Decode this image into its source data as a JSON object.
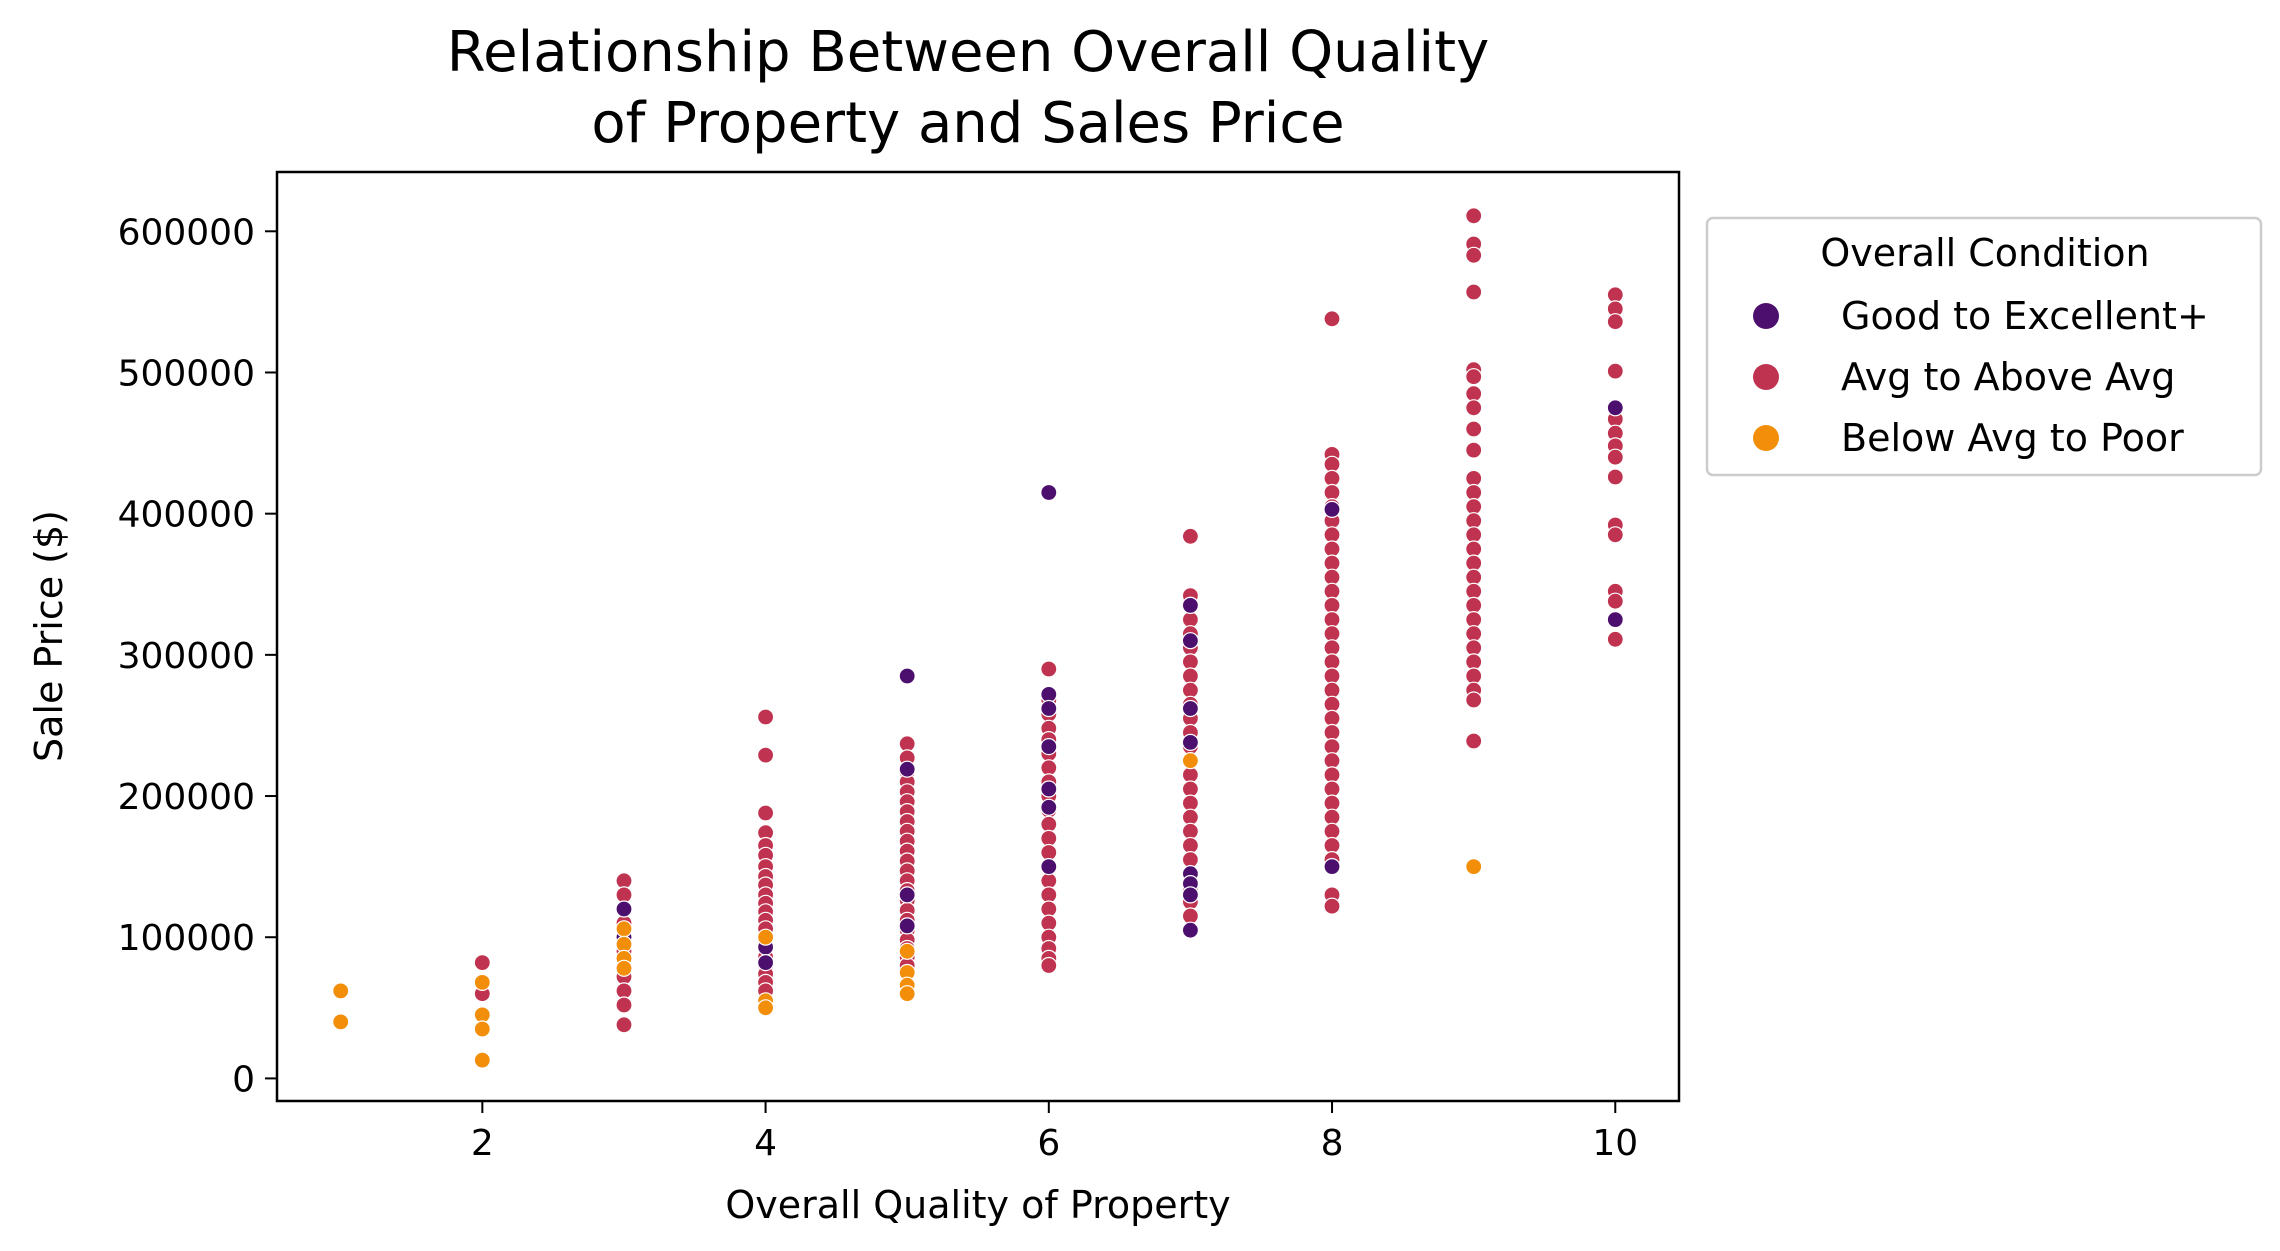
{
  "chart_data": {
    "type": "scatter",
    "title_line1": "Relationship Between Overall Quality",
    "title_line2": "of Property and Sales Price",
    "xlabel": "Overall Quality of Property",
    "ylabel": "Sale Price ($)",
    "xlim": [
      0.55,
      10.45
    ],
    "ylim": [
      -16000,
      642000
    ],
    "xticks": [
      2,
      4,
      6,
      8,
      10
    ],
    "yticks": [
      0,
      100000,
      200000,
      300000,
      400000,
      500000,
      600000
    ],
    "xtick_labels": [
      "2",
      "4",
      "6",
      "8",
      "10"
    ],
    "ytick_labels": [
      "0",
      "100000",
      "200000",
      "300000",
      "400000",
      "500000",
      "600000"
    ],
    "grid": false,
    "legend_position": "outside-right",
    "legend": {
      "title": "Overall Condition",
      "entries": [
        {
          "label": "Good to Excellent+",
          "color": "#4d0f6e"
        },
        {
          "label": "Avg to Above Avg",
          "color": "#c03350"
        },
        {
          "label": "Below Avg to Poor",
          "color": "#f28e0a"
        }
      ]
    },
    "series": [
      {
        "name": "Avg to Above Avg",
        "color": "#c03350",
        "points": [
          [
            2,
            82000
          ],
          [
            2,
            60000
          ],
          [
            3,
            140000
          ],
          [
            3,
            130000
          ],
          [
            3,
            110000
          ],
          [
            3,
            90000
          ],
          [
            3,
            72000
          ],
          [
            3,
            62000
          ],
          [
            3,
            52000
          ],
          [
            3,
            38000
          ],
          [
            4,
            256000
          ],
          [
            4,
            229000
          ],
          [
            4,
            188000
          ],
          [
            4,
            174000
          ],
          [
            4,
            165000
          ],
          [
            4,
            158000
          ],
          [
            4,
            150000
          ],
          [
            4,
            143000
          ],
          [
            4,
            137000
          ],
          [
            4,
            130000
          ],
          [
            4,
            124000
          ],
          [
            4,
            118000
          ],
          [
            4,
            112000
          ],
          [
            4,
            106000
          ],
          [
            4,
            98000
          ],
          [
            4,
            92000
          ],
          [
            4,
            86000
          ],
          [
            4,
            80000
          ],
          [
            4,
            74000
          ],
          [
            4,
            68000
          ],
          [
            4,
            62000
          ],
          [
            5,
            237000
          ],
          [
            5,
            227000
          ],
          [
            5,
            217000
          ],
          [
            5,
            210000
          ],
          [
            5,
            203000
          ],
          [
            5,
            196000
          ],
          [
            5,
            189000
          ],
          [
            5,
            182000
          ],
          [
            5,
            175000
          ],
          [
            5,
            168000
          ],
          [
            5,
            161000
          ],
          [
            5,
            154000
          ],
          [
            5,
            147000
          ],
          [
            5,
            140000
          ],
          [
            5,
            133000
          ],
          [
            5,
            126000
          ],
          [
            5,
            119000
          ],
          [
            5,
            112000
          ],
          [
            5,
            105000
          ],
          [
            5,
            98000
          ],
          [
            5,
            92000
          ],
          [
            5,
            86000
          ],
          [
            5,
            80000
          ],
          [
            6,
            290000
          ],
          [
            6,
            268000
          ],
          [
            6,
            258000
          ],
          [
            6,
            248000
          ],
          [
            6,
            240000
          ],
          [
            6,
            230000
          ],
          [
            6,
            220000
          ],
          [
            6,
            210000
          ],
          [
            6,
            200000
          ],
          [
            6,
            190000
          ],
          [
            6,
            180000
          ],
          [
            6,
            170000
          ],
          [
            6,
            160000
          ],
          [
            6,
            150000
          ],
          [
            6,
            140000
          ],
          [
            6,
            130000
          ],
          [
            6,
            120000
          ],
          [
            6,
            110000
          ],
          [
            6,
            100000
          ],
          [
            6,
            92000
          ],
          [
            6,
            85000
          ],
          [
            6,
            80000
          ],
          [
            7,
            384000
          ],
          [
            7,
            342000
          ],
          [
            7,
            335000
          ],
          [
            7,
            325000
          ],
          [
            7,
            315000
          ],
          [
            7,
            305000
          ],
          [
            7,
            295000
          ],
          [
            7,
            285000
          ],
          [
            7,
            275000
          ],
          [
            7,
            265000
          ],
          [
            7,
            255000
          ],
          [
            7,
            245000
          ],
          [
            7,
            235000
          ],
          [
            7,
            225000
          ],
          [
            7,
            215000
          ],
          [
            7,
            205000
          ],
          [
            7,
            195000
          ],
          [
            7,
            185000
          ],
          [
            7,
            175000
          ],
          [
            7,
            165000
          ],
          [
            7,
            155000
          ],
          [
            7,
            145000
          ],
          [
            7,
            135000
          ],
          [
            7,
            125000
          ],
          [
            7,
            115000
          ],
          [
            8,
            538000
          ],
          [
            8,
            442000
          ],
          [
            8,
            435000
          ],
          [
            8,
            425000
          ],
          [
            8,
            415000
          ],
          [
            8,
            405000
          ],
          [
            8,
            395000
          ],
          [
            8,
            385000
          ],
          [
            8,
            375000
          ],
          [
            8,
            365000
          ],
          [
            8,
            355000
          ],
          [
            8,
            345000
          ],
          [
            8,
            335000
          ],
          [
            8,
            325000
          ],
          [
            8,
            315000
          ],
          [
            8,
            305000
          ],
          [
            8,
            295000
          ],
          [
            8,
            285000
          ],
          [
            8,
            275000
          ],
          [
            8,
            265000
          ],
          [
            8,
            255000
          ],
          [
            8,
            245000
          ],
          [
            8,
            235000
          ],
          [
            8,
            225000
          ],
          [
            8,
            215000
          ],
          [
            8,
            205000
          ],
          [
            8,
            195000
          ],
          [
            8,
            185000
          ],
          [
            8,
            175000
          ],
          [
            8,
            165000
          ],
          [
            8,
            155000
          ],
          [
            8,
            130000
          ],
          [
            8,
            122000
          ],
          [
            9,
            611000
          ],
          [
            9,
            591000
          ],
          [
            9,
            583000
          ],
          [
            9,
            557000
          ],
          [
            9,
            502000
          ],
          [
            9,
            497000
          ],
          [
            9,
            485000
          ],
          [
            9,
            475000
          ],
          [
            9,
            460000
          ],
          [
            9,
            445000
          ],
          [
            9,
            425000
          ],
          [
            9,
            415000
          ],
          [
            9,
            405000
          ],
          [
            9,
            395000
          ],
          [
            9,
            385000
          ],
          [
            9,
            375000
          ],
          [
            9,
            365000
          ],
          [
            9,
            355000
          ],
          [
            9,
            345000
          ],
          [
            9,
            335000
          ],
          [
            9,
            325000
          ],
          [
            9,
            315000
          ],
          [
            9,
            305000
          ],
          [
            9,
            295000
          ],
          [
            9,
            285000
          ],
          [
            9,
            275000
          ],
          [
            9,
            268000
          ],
          [
            9,
            239000
          ],
          [
            10,
            555000
          ],
          [
            10,
            545000
          ],
          [
            10,
            536000
          ],
          [
            10,
            501000
          ],
          [
            10,
            467000
          ],
          [
            10,
            457000
          ],
          [
            10,
            448000
          ],
          [
            10,
            440000
          ],
          [
            10,
            426000
          ],
          [
            10,
            392000
          ],
          [
            10,
            385000
          ],
          [
            10,
            345000
          ],
          [
            10,
            338000
          ],
          [
            10,
            311000
          ]
        ]
      },
      {
        "name": "Good to Excellent+",
        "color": "#4d0f6e",
        "points": [
          [
            3,
            120000
          ],
          [
            3,
            100000
          ],
          [
            4,
            93000
          ],
          [
            4,
            82000
          ],
          [
            5,
            285000
          ],
          [
            5,
            219000
          ],
          [
            5,
            130000
          ],
          [
            5,
            108000
          ],
          [
            6,
            415000
          ],
          [
            6,
            272000
          ],
          [
            6,
            262000
          ],
          [
            6,
            235000
          ],
          [
            6,
            205000
          ],
          [
            6,
            192000
          ],
          [
            6,
            150000
          ],
          [
            7,
            335000
          ],
          [
            7,
            310000
          ],
          [
            7,
            262000
          ],
          [
            7,
            238000
          ],
          [
            7,
            145000
          ],
          [
            7,
            138000
          ],
          [
            7,
            130000
          ],
          [
            7,
            105000
          ],
          [
            8,
            403000
          ],
          [
            8,
            150000
          ],
          [
            10,
            475000
          ],
          [
            10,
            325000
          ]
        ]
      },
      {
        "name": "Below Avg to Poor",
        "color": "#f28e0a",
        "points": [
          [
            1,
            62000
          ],
          [
            1,
            40000
          ],
          [
            2,
            68000
          ],
          [
            2,
            45000
          ],
          [
            2,
            35000
          ],
          [
            2,
            13000
          ],
          [
            3,
            106000
          ],
          [
            3,
            95000
          ],
          [
            3,
            85000
          ],
          [
            3,
            78000
          ],
          [
            4,
            100000
          ],
          [
            4,
            55000
          ],
          [
            4,
            50000
          ],
          [
            5,
            90000
          ],
          [
            5,
            75000
          ],
          [
            5,
            66000
          ],
          [
            5,
            60000
          ],
          [
            7,
            225000
          ],
          [
            9,
            150000
          ]
        ]
      }
    ]
  }
}
